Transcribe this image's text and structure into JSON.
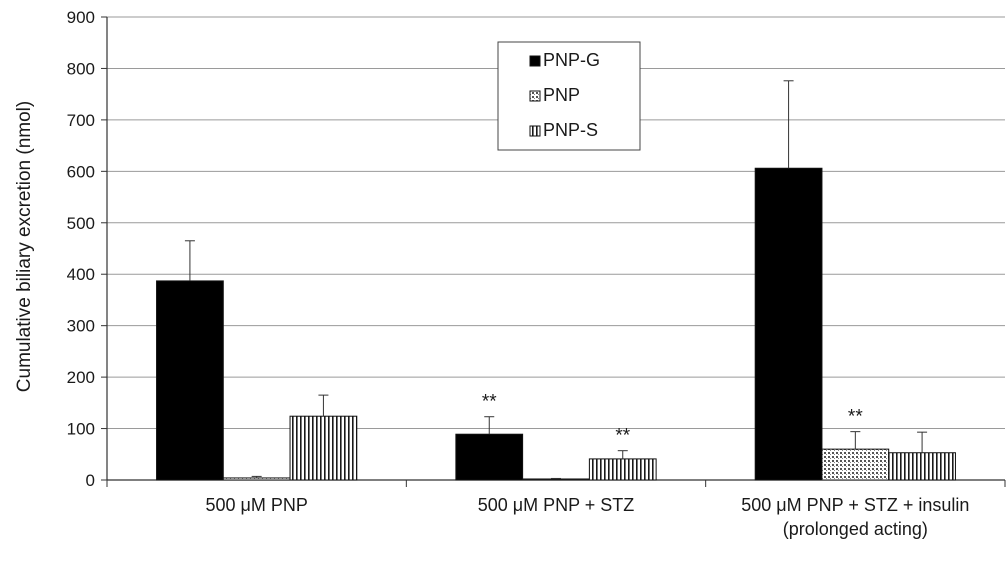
{
  "chart_data": {
    "type": "bar",
    "ylabel": "Cumulative biliary excretion (nmol)",
    "ylim": [
      0,
      900
    ],
    "yticks": [
      0,
      100,
      200,
      300,
      400,
      500,
      600,
      700,
      800,
      900
    ],
    "grid": "horizontal",
    "legend_position": "top-center",
    "categories": [
      [
        "500 μM PNP"
      ],
      [
        "500 μM PNP + STZ"
      ],
      [
        "500 μM PNP + STZ + insulin",
        "(prolonged acting)"
      ]
    ],
    "series": [
      {
        "name": "PNP-G",
        "pattern": "solid",
        "values": [
          387,
          89,
          606
        ],
        "errors": [
          78,
          34,
          170
        ],
        "annotations": [
          "",
          "**",
          ""
        ]
      },
      {
        "name": "PNP",
        "pattern": "dots",
        "values": [
          4,
          2,
          60
        ],
        "errors": [
          3,
          1,
          34
        ],
        "annotations": [
          "",
          "",
          "**"
        ]
      },
      {
        "name": "PNP-S",
        "pattern": "vstripes",
        "values": [
          124,
          41,
          53
        ],
        "errors": [
          41,
          16,
          40
        ],
        "annotations": [
          "",
          "**",
          ""
        ]
      }
    ]
  }
}
